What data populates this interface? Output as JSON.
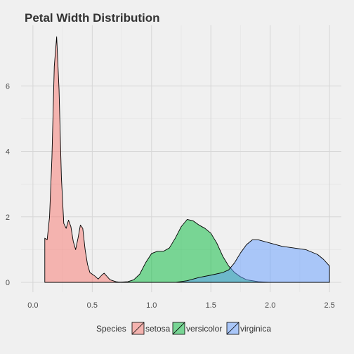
{
  "chart_data": {
    "type": "area",
    "title": "Petal Width Distribution",
    "xlabel": "",
    "ylabel": "",
    "xlim": [
      -0.1,
      2.6
    ],
    "ylim": [
      -0.3,
      7.85
    ],
    "x_ticks": [
      0.0,
      0.5,
      1.0,
      1.5,
      2.0,
      2.5
    ],
    "x_tick_labels": [
      "0.0",
      "0.5",
      "1.0",
      "1.5",
      "2.0",
      "2.5"
    ],
    "y_ticks": [
      0,
      2,
      4,
      6
    ],
    "y_tick_labels": [
      "0",
      "2",
      "4",
      "6"
    ],
    "grid": true,
    "legend": {
      "title": "Species",
      "position": "bottom",
      "entries": [
        "setosa",
        "versicolor",
        "virginica"
      ]
    },
    "series": [
      {
        "name": "setosa",
        "color": "#F8766D",
        "points": [
          [
            0.1,
            0.0
          ],
          [
            0.1,
            1.35
          ],
          [
            0.12,
            1.3
          ],
          [
            0.14,
            2.0
          ],
          [
            0.16,
            3.8
          ],
          [
            0.18,
            6.6
          ],
          [
            0.2,
            7.5
          ],
          [
            0.22,
            5.9
          ],
          [
            0.24,
            3.2
          ],
          [
            0.26,
            1.8
          ],
          [
            0.28,
            1.65
          ],
          [
            0.3,
            1.9
          ],
          [
            0.32,
            1.7
          ],
          [
            0.34,
            1.25
          ],
          [
            0.36,
            1.0
          ],
          [
            0.38,
            1.35
          ],
          [
            0.4,
            1.75
          ],
          [
            0.42,
            1.65
          ],
          [
            0.44,
            1.0
          ],
          [
            0.46,
            0.55
          ],
          [
            0.48,
            0.3
          ],
          [
            0.5,
            0.25
          ],
          [
            0.52,
            0.2
          ],
          [
            0.55,
            0.1
          ],
          [
            0.58,
            0.22
          ],
          [
            0.6,
            0.28
          ],
          [
            0.62,
            0.2
          ],
          [
            0.65,
            0.08
          ],
          [
            0.7,
            0.02
          ],
          [
            0.75,
            0.0
          ]
        ]
      },
      {
        "name": "versicolor",
        "color": "#00BA38",
        "points": [
          [
            0.7,
            0.0
          ],
          [
            0.8,
            0.02
          ],
          [
            0.85,
            0.08
          ],
          [
            0.9,
            0.25
          ],
          [
            0.95,
            0.6
          ],
          [
            1.0,
            0.88
          ],
          [
            1.05,
            0.95
          ],
          [
            1.1,
            0.95
          ],
          [
            1.15,
            1.05
          ],
          [
            1.2,
            1.35
          ],
          [
            1.25,
            1.7
          ],
          [
            1.3,
            1.92
          ],
          [
            1.35,
            1.88
          ],
          [
            1.4,
            1.75
          ],
          [
            1.45,
            1.65
          ],
          [
            1.5,
            1.5
          ],
          [
            1.55,
            1.2
          ],
          [
            1.6,
            0.8
          ],
          [
            1.65,
            0.5
          ],
          [
            1.7,
            0.3
          ],
          [
            1.75,
            0.17
          ],
          [
            1.8,
            0.08
          ],
          [
            1.9,
            0.02
          ],
          [
            2.0,
            0.0
          ]
        ]
      },
      {
        "name": "virginica",
        "color": "#619CFF",
        "points": [
          [
            1.0,
            0.0
          ],
          [
            1.2,
            0.0
          ],
          [
            1.3,
            0.05
          ],
          [
            1.4,
            0.15
          ],
          [
            1.5,
            0.22
          ],
          [
            1.6,
            0.3
          ],
          [
            1.65,
            0.38
          ],
          [
            1.7,
            0.6
          ],
          [
            1.75,
            0.9
          ],
          [
            1.8,
            1.15
          ],
          [
            1.85,
            1.3
          ],
          [
            1.9,
            1.3
          ],
          [
            2.0,
            1.2
          ],
          [
            2.1,
            1.1
          ],
          [
            2.2,
            1.05
          ],
          [
            2.3,
            1.0
          ],
          [
            2.4,
            0.85
          ],
          [
            2.45,
            0.7
          ],
          [
            2.5,
            0.5
          ],
          [
            2.5,
            0.0
          ]
        ]
      }
    ]
  }
}
